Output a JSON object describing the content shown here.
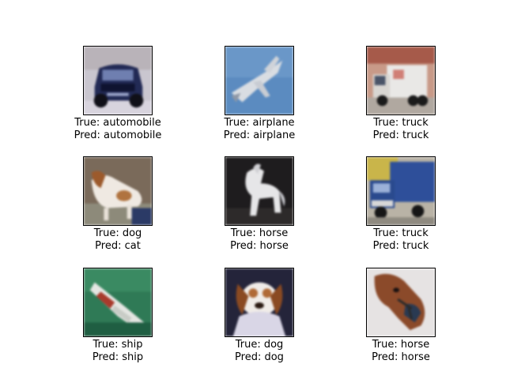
{
  "grid": [
    {
      "true_label": "True: automobile",
      "pred_label": "Pred: automobile",
      "icon": "car-photo"
    },
    {
      "true_label": "True: airplane",
      "pred_label": "Pred: airplane",
      "icon": "jet-photo"
    },
    {
      "true_label": "True: truck",
      "pred_label": "Pred: truck",
      "icon": "truck-photo"
    },
    {
      "true_label": "True: dog",
      "pred_label": "Pred: cat",
      "icon": "dog-photo"
    },
    {
      "true_label": "True: horse",
      "pred_label": "Pred: horse",
      "icon": "horse-photo"
    },
    {
      "true_label": "True: truck",
      "pred_label": "Pred: truck",
      "icon": "truck-photo"
    },
    {
      "true_label": "True: ship",
      "pred_label": "Pred: ship",
      "icon": "ship-photo"
    },
    {
      "true_label": "True: dog",
      "pred_label": "Pred: dog",
      "icon": "puppy-photo"
    },
    {
      "true_label": "True: horse",
      "pred_label": "Pred: horse",
      "icon": "horse-head-photo"
    }
  ]
}
